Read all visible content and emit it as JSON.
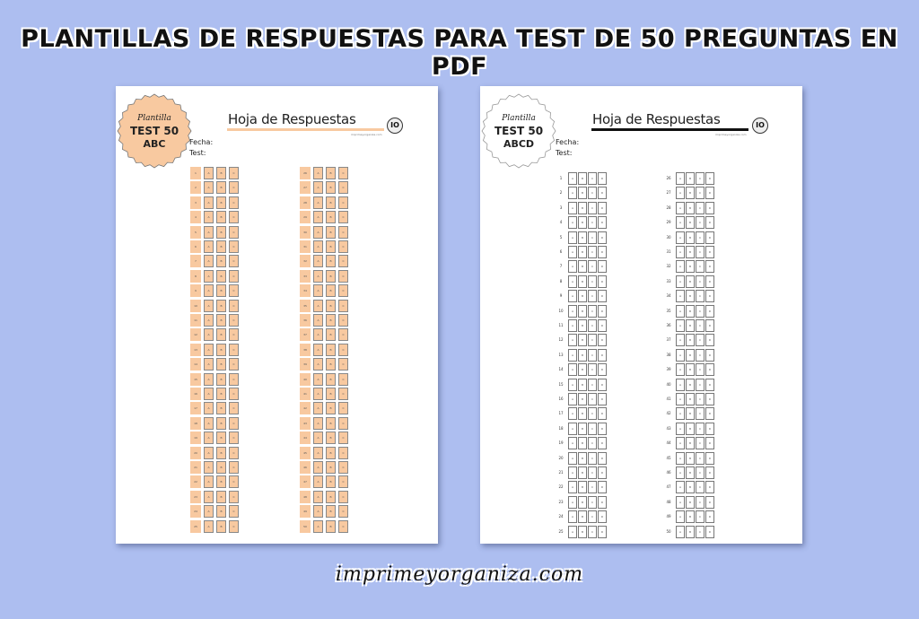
{
  "banner_title": "PLANTILLAS DE RESPUESTAS PARA TEST DE 50 PREGUNTAS EN PDF",
  "footer_site": "imprimeyorganiza.com",
  "colors": {
    "background": "#adbef0",
    "peach": "#f8c9a0",
    "text": "#111111"
  },
  "sheets": [
    {
      "badge": {
        "script": "Plantilla",
        "line1": "TEST 50",
        "line2": "ABC"
      },
      "heading": "Hoja de Respuestas",
      "site_small": "imprimeyorganiza.com",
      "logo": "IO",
      "fecha_label": "Fecha:",
      "test_label": "Test:",
      "options": [
        "A",
        "B",
        "C"
      ],
      "columns": [
        {
          "from": 1,
          "to": 25
        },
        {
          "from": 26,
          "to": 50
        }
      ]
    },
    {
      "badge": {
        "script": "Plantilla",
        "line1": "TEST 50",
        "line2": "ABCD"
      },
      "heading": "Hoja de Respuestas",
      "site_small": "imprimeyorganiza.com",
      "logo": "IO",
      "fecha_label": "Fecha:",
      "test_label": "Test:",
      "options": [
        "A",
        "B",
        "C",
        "D"
      ],
      "columns": [
        {
          "from": 1,
          "to": 25
        },
        {
          "from": 26,
          "to": 50
        }
      ]
    }
  ]
}
